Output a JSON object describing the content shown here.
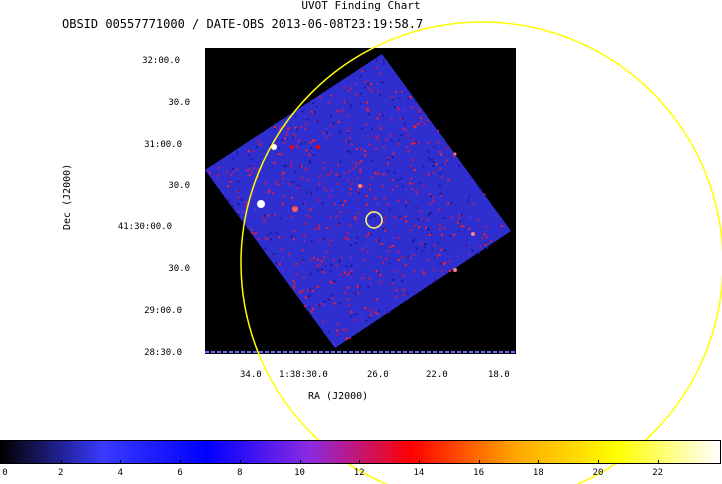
{
  "header": {
    "title": "UVOT Finding Chart",
    "subtitle": "OBSID 00557771000 / DATE-OBS 2013-06-08T23:19:58.7"
  },
  "axes": {
    "ylabel": "Dec (J2000)",
    "xlabel": "RA (J2000)",
    "yticks": [
      "32:00.0",
      "30.0",
      "31:00.0",
      "30.0",
      "41:30:00.0",
      "30.0",
      "29:00.0",
      "28:30.0"
    ],
    "xticks": [
      "34.0",
      "1:38:30.0",
      "26.0",
      "22.0",
      "18.0"
    ]
  },
  "colorbar": {
    "ticks": [
      "0",
      "2",
      "4",
      "6",
      "8",
      "10",
      "12",
      "14",
      "16",
      "18",
      "20",
      "22"
    ],
    "colors": [
      "#000000",
      "#3a3aff",
      "#0000ff",
      "#8a2be2",
      "#ff0000",
      "#ffa500",
      "#ffff00",
      "#ffffff"
    ]
  },
  "image": {
    "background": "#000000",
    "field_color": "#3232c8",
    "marker_color": "#ffff66",
    "sources": "bright point sources shown in red/white"
  }
}
